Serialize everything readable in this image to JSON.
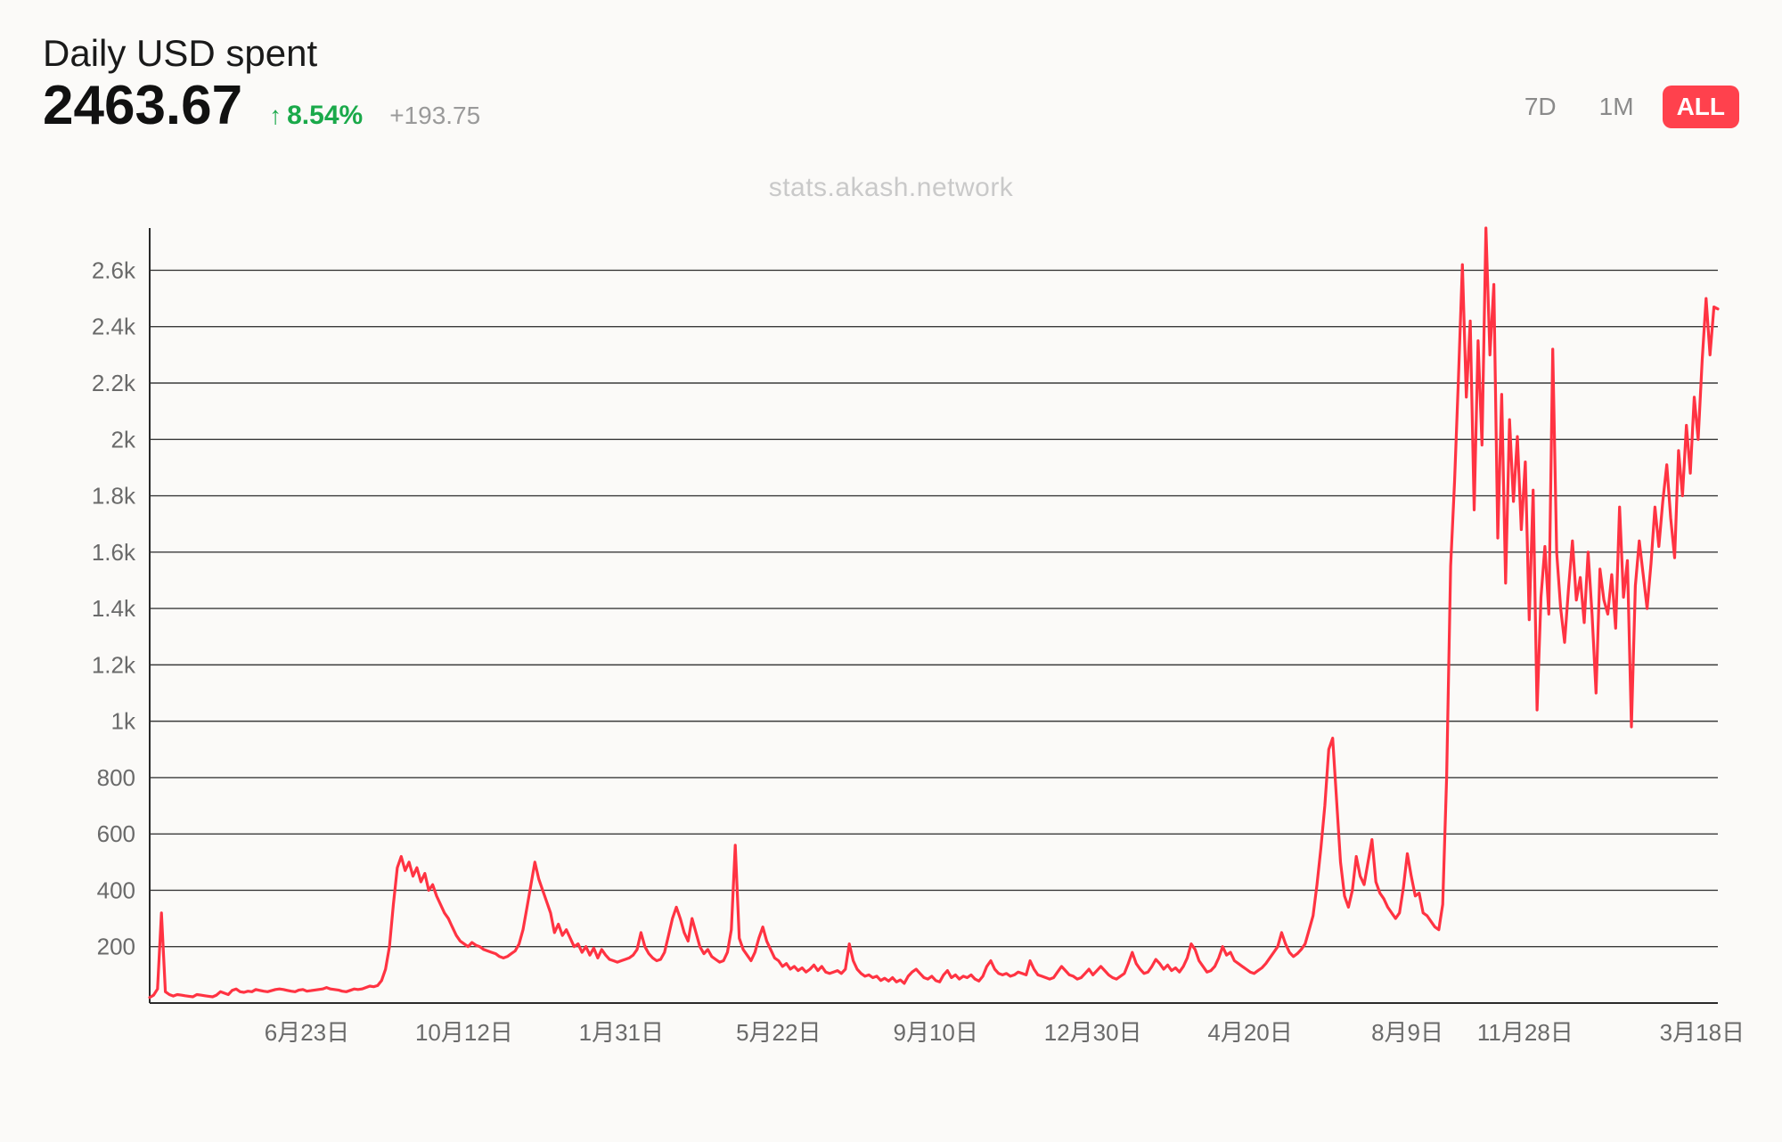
{
  "header": {
    "title": "Daily USD spent",
    "value": "2463.67",
    "pct_change": "8.54%",
    "pct_color": "#1aa94a",
    "pct_direction": "up",
    "abs_change": "+193.75"
  },
  "range_selector": {
    "options": [
      "7D",
      "1M",
      "ALL"
    ],
    "active": "ALL",
    "active_bg": "#ff414d",
    "active_fg": "#ffffff",
    "inactive_fg": "#8a8a8a"
  },
  "watermark": "stats.akash.network",
  "chart": {
    "type": "line",
    "background_color": "#fbfaf8",
    "line_color": "#ff3342",
    "line_width": 3.2,
    "grid_color": "#3a3a3a",
    "grid_width": 1.4,
    "axis_color": "#2a2a2a",
    "tick_font_size": 26,
    "ylim": [
      0,
      2750
    ],
    "yticks": [
      200,
      400,
      600,
      800,
      1000,
      1200,
      1400,
      1600,
      1800,
      2000,
      2200,
      2400,
      2600
    ],
    "ytick_labels": [
      "200",
      "400",
      "600",
      "800",
      "1k",
      "1.2k",
      "1.4k",
      "1.6k",
      "1.8k",
      "2k",
      "2.2k",
      "2.4k",
      "2.6k"
    ],
    "x_n_points": 400,
    "xticks_idx": [
      40,
      80,
      120,
      160,
      200,
      240,
      280,
      320,
      350,
      395
    ],
    "xtick_labels": [
      "6月23日",
      "10月12日",
      "1月31日",
      "5月22日",
      "9月10日",
      "12月30日",
      "4月20日",
      "8月9日",
      "11月28日",
      "3月18日"
    ],
    "values": [
      20,
      28,
      50,
      320,
      40,
      30,
      25,
      30,
      28,
      26,
      24,
      22,
      30,
      28,
      26,
      24,
      22,
      28,
      40,
      35,
      30,
      45,
      50,
      40,
      38,
      42,
      40,
      48,
      45,
      42,
      40,
      44,
      48,
      50,
      48,
      45,
      42,
      40,
      46,
      48,
      42,
      44,
      46,
      48,
      50,
      55,
      50,
      48,
      46,
      42,
      40,
      45,
      50,
      48,
      50,
      55,
      60,
      58,
      62,
      80,
      120,
      200,
      350,
      480,
      520,
      470,
      500,
      450,
      480,
      430,
      460,
      400,
      420,
      380,
      350,
      320,
      300,
      270,
      240,
      220,
      210,
      200,
      215,
      205,
      200,
      190,
      185,
      180,
      175,
      165,
      160,
      165,
      175,
      185,
      210,
      260,
      340,
      420,
      500,
      440,
      400,
      360,
      320,
      250,
      280,
      240,
      260,
      230,
      200,
      210,
      180,
      200,
      170,
      195,
      160,
      190,
      170,
      155,
      150,
      145,
      150,
      155,
      160,
      170,
      190,
      250,
      200,
      175,
      160,
      150,
      155,
      180,
      240,
      300,
      340,
      300,
      250,
      220,
      300,
      250,
      200,
      175,
      190,
      165,
      155,
      145,
      150,
      180,
      260,
      560,
      230,
      190,
      170,
      150,
      180,
      230,
      270,
      220,
      190,
      160,
      150,
      130,
      140,
      120,
      130,
      115,
      125,
      110,
      120,
      135,
      115,
      130,
      110,
      105,
      110,
      115,
      105,
      120,
      210,
      150,
      120,
      105,
      95,
      100,
      90,
      95,
      80,
      88,
      78,
      90,
      75,
      82,
      70,
      95,
      110,
      120,
      105,
      90,
      85,
      95,
      80,
      75,
      100,
      115,
      90,
      100,
      85,
      95,
      90,
      100,
      85,
      78,
      95,
      130,
      150,
      120,
      105,
      100,
      105,
      95,
      100,
      110,
      105,
      100,
      150,
      120,
      100,
      95,
      90,
      85,
      90,
      110,
      130,
      115,
      100,
      95,
      85,
      90,
      105,
      120,
      100,
      115,
      130,
      115,
      100,
      90,
      85,
      95,
      105,
      140,
      180,
      140,
      120,
      105,
      110,
      130,
      155,
      140,
      120,
      135,
      115,
      125,
      110,
      130,
      160,
      210,
      190,
      150,
      130,
      110,
      115,
      130,
      160,
      200,
      170,
      180,
      150,
      140,
      130,
      120,
      110,
      105,
      115,
      125,
      140,
      160,
      180,
      200,
      250,
      210,
      180,
      165,
      175,
      190,
      210,
      260,
      310,
      420,
      550,
      700,
      900,
      940,
      720,
      500,
      380,
      340,
      400,
      520,
      450,
      420,
      500,
      580,
      430,
      390,
      370,
      340,
      320,
      300,
      320,
      410,
      530,
      450,
      380,
      390,
      320,
      310,
      290,
      270,
      260,
      350,
      800,
      1550,
      1850,
      2220,
      2620,
      2150,
      2420,
      1750,
      2350,
      1980,
      2750,
      2300,
      2550,
      1650,
      2160,
      1490,
      2070,
      1780,
      2010,
      1680,
      1920,
      1360,
      1820,
      1040,
      1440,
      1620,
      1380,
      2320,
      1600,
      1400,
      1280,
      1470,
      1640,
      1430,
      1510,
      1350,
      1600,
      1380,
      1100,
      1540,
      1430,
      1380,
      1520,
      1330,
      1760,
      1440,
      1570,
      980,
      1480,
      1640,
      1520,
      1400,
      1560,
      1760,
      1620,
      1780,
      1910,
      1720,
      1580,
      1960,
      1800,
      2050,
      1880,
      2150,
      2000,
      2280,
      2500,
      2300,
      2470,
      2463
    ]
  }
}
